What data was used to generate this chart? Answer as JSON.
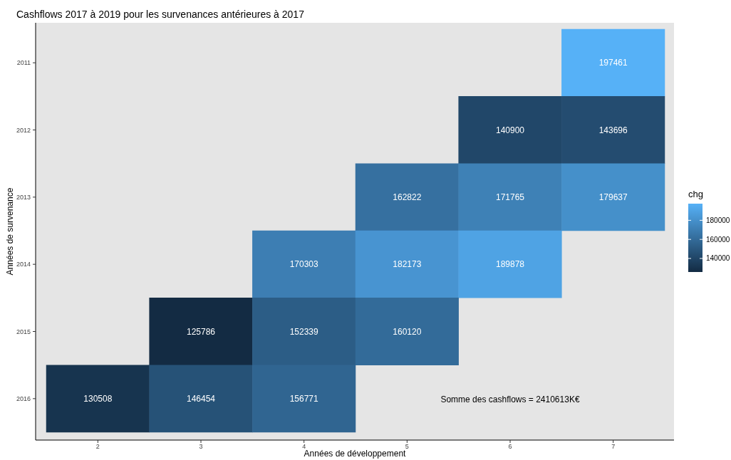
{
  "chart_data": {
    "type": "heatmap",
    "title": "Cashflows 2017 à 2019 pour les survenances antérieures à 2017",
    "xlabel": "Années de développement",
    "ylabel": "Années de survenance",
    "clabel": "chg",
    "categories": [
      "2",
      "3",
      "4",
      "5",
      "6",
      "7"
    ],
    "y_categories": [
      "2011",
      "2012",
      "2013",
      "2014",
      "2015",
      "2016"
    ],
    "cells": [
      [
        null,
        null,
        null,
        null,
        null,
        197461
      ],
      [
        null,
        null,
        null,
        null,
        140900,
        143696
      ],
      [
        null,
        null,
        null,
        162822,
        171765,
        179637
      ],
      [
        null,
        null,
        170303,
        182173,
        189878,
        null
      ],
      [
        null,
        125786,
        152339,
        160120,
        null,
        null
      ],
      [
        130508,
        146454,
        156771,
        null,
        null,
        null
      ]
    ],
    "clim": [
      125786,
      197461
    ],
    "cticks": [
      140000,
      160000,
      180000
    ],
    "data_labels": true,
    "grid": false,
    "annotations": [
      "Somme des cashflows = 2410613K€"
    ]
  }
}
